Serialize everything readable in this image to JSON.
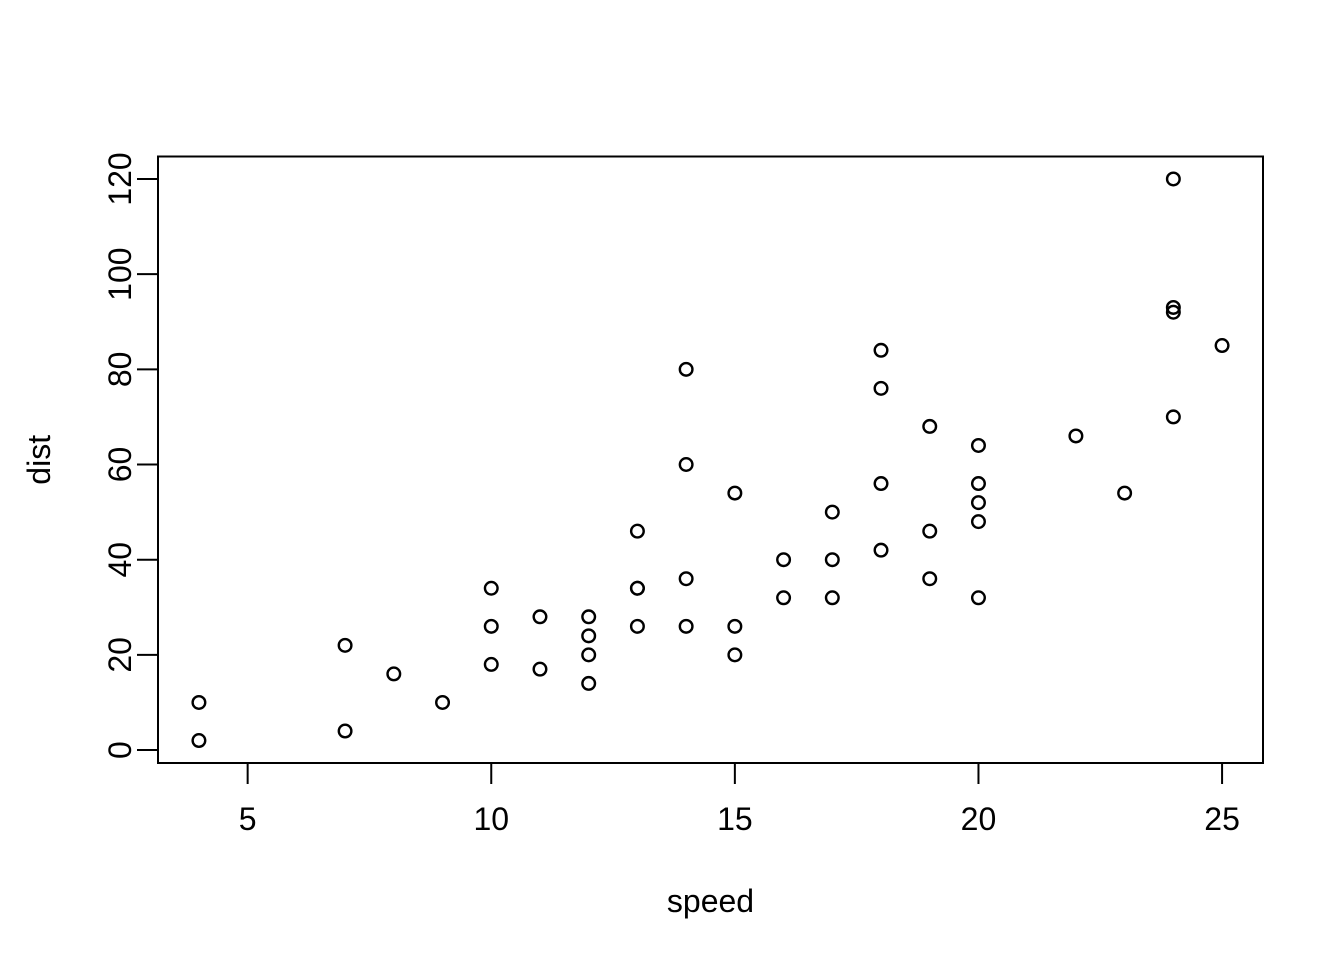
{
  "chart_data": {
    "type": "scatter",
    "title": "",
    "xlabel": "speed",
    "ylabel": "dist",
    "x_ticks": [
      5,
      10,
      15,
      20,
      25
    ],
    "y_ticks": [
      0,
      20,
      40,
      60,
      80,
      100,
      120
    ],
    "xlim": [
      3.16,
      25.84
    ],
    "ylim": [
      -2.72,
      124.72
    ],
    "grid": false,
    "legend": null,
    "marker": "open-circle",
    "colors": {
      "points": "#000000",
      "axis": "#000000",
      "text": "#000000",
      "background": "#ffffff"
    },
    "points": [
      [
        4,
        2
      ],
      [
        4,
        10
      ],
      [
        7,
        4
      ],
      [
        7,
        22
      ],
      [
        8,
        16
      ],
      [
        9,
        10
      ],
      [
        10,
        18
      ],
      [
        10,
        26
      ],
      [
        10,
        34
      ],
      [
        11,
        17
      ],
      [
        11,
        28
      ],
      [
        12,
        14
      ],
      [
        12,
        20
      ],
      [
        12,
        24
      ],
      [
        12,
        28
      ],
      [
        13,
        26
      ],
      [
        13,
        34
      ],
      [
        13,
        34
      ],
      [
        13,
        46
      ],
      [
        14,
        26
      ],
      [
        14,
        36
      ],
      [
        14,
        60
      ],
      [
        14,
        80
      ],
      [
        15,
        20
      ],
      [
        15,
        26
      ],
      [
        15,
        54
      ],
      [
        16,
        32
      ],
      [
        16,
        40
      ],
      [
        17,
        32
      ],
      [
        17,
        40
      ],
      [
        17,
        50
      ],
      [
        18,
        42
      ],
      [
        18,
        56
      ],
      [
        18,
        76
      ],
      [
        18,
        84
      ],
      [
        19,
        36
      ],
      [
        19,
        46
      ],
      [
        19,
        68
      ],
      [
        20,
        32
      ],
      [
        20,
        48
      ],
      [
        20,
        52
      ],
      [
        20,
        56
      ],
      [
        20,
        64
      ],
      [
        22,
        66
      ],
      [
        23,
        54
      ],
      [
        24,
        70
      ],
      [
        24,
        92
      ],
      [
        24,
        93
      ],
      [
        24,
        120
      ],
      [
        25,
        85
      ]
    ]
  }
}
